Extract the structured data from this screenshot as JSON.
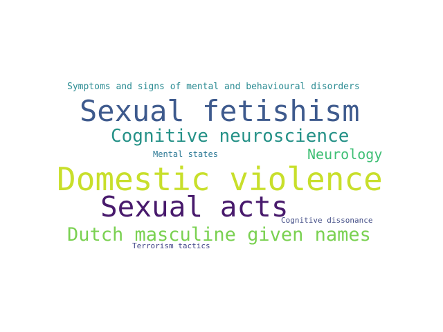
{
  "words": [
    {
      "text": "Symptoms and signs of mental and behavioural disorders",
      "color": "#2c8c93"
    },
    {
      "text": "Sexual fetishism",
      "color": "#3e5a8d"
    },
    {
      "text": "Cognitive neuroscience",
      "color": "#259187"
    },
    {
      "text": "Mental states",
      "color": "#2e7a96"
    },
    {
      "text": "Neurology",
      "color": "#3fbf75"
    },
    {
      "text": "Domestic violence",
      "color": "#c8df2b"
    },
    {
      "text": "Sexual acts",
      "color": "#481a6c"
    },
    {
      "text": "Cognitive dissonance",
      "color": "#424d86"
    },
    {
      "text": "Dutch masculine given names",
      "color": "#7ad151"
    },
    {
      "text": "Terrorism tactics",
      "color": "#414487"
    }
  ]
}
